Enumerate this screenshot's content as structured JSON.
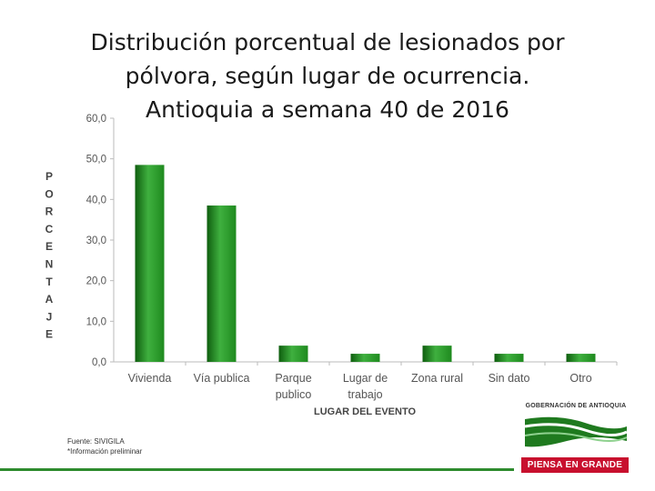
{
  "title_lines": [
    "Distribución porcentual de lesionados por",
    "pólvora, según lugar de ocurrencia.",
    "Antioquia a semana 40 de 2016"
  ],
  "source_lines": [
    "Fuente: SIVIGILA",
    "*Información preliminar"
  ],
  "logo": {
    "org": "GOBERNACIÓN DE ANTIOQUIA",
    "slogan": "PIENSA EN GRANDE"
  },
  "colors": {
    "bar": "#1e8a1e",
    "bar_dark": "#0f5e0f",
    "bar_light": "#3fb03f",
    "axis": "#bbbbbb",
    "logo_red": "#c8102e"
  },
  "chart_data": {
    "type": "bar",
    "title": "Distribución porcentual de lesionados por pólvora, según lugar de ocurrencia. Antioquia a semana 40 de 2016",
    "categories": [
      [
        "Vivienda"
      ],
      [
        "Vía publica"
      ],
      [
        "Parque",
        "publico"
      ],
      [
        "Lugar de",
        "trabajo"
      ],
      [
        "Zona rural"
      ],
      [
        "Sin dato"
      ],
      [
        "Otro"
      ]
    ],
    "values": [
      48.5,
      38.5,
      4.0,
      2.0,
      4.0,
      2.0,
      2.0
    ],
    "xlabel": "LUGAR DEL EVENTO",
    "ylabel": "PORCENTAJE",
    "ylim": [
      0,
      60
    ],
    "yticks": [
      "0,0",
      "10,0",
      "20,0",
      "30,0",
      "40,0",
      "50,0",
      "60,0"
    ],
    "grid": false
  }
}
